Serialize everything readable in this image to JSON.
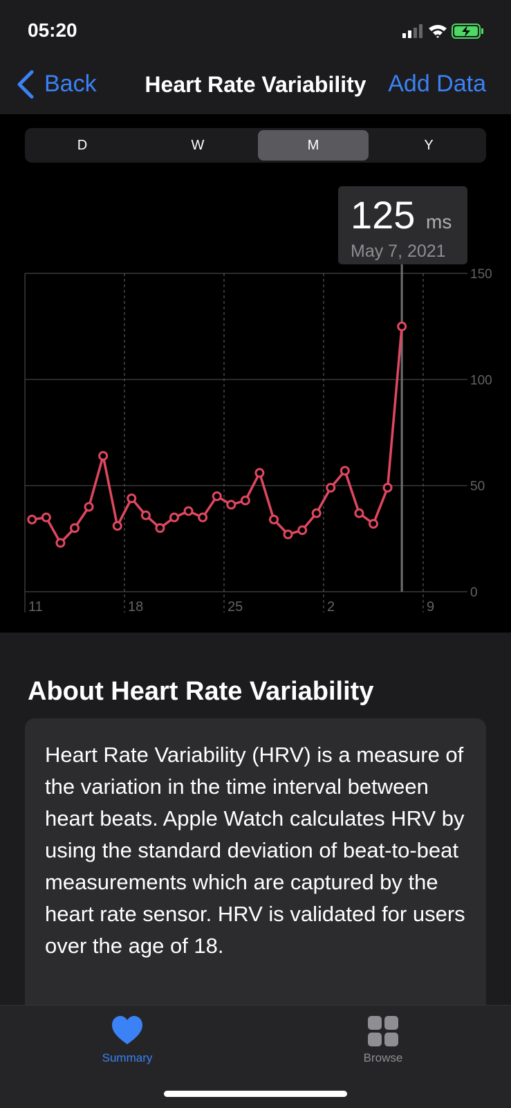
{
  "status": {
    "time": "05:20"
  },
  "nav": {
    "back": "Back",
    "title": "Heart Rate Variability",
    "action": "Add Data"
  },
  "segments": {
    "items": [
      "D",
      "W",
      "M",
      "Y"
    ],
    "selected": 2
  },
  "chart_data": {
    "type": "line",
    "categories": [
      "11",
      null,
      null,
      null,
      null,
      null,
      null,
      "18",
      null,
      null,
      null,
      null,
      null,
      null,
      "25",
      null,
      null,
      null,
      null,
      null,
      null,
      "2",
      null,
      null,
      null,
      null,
      null,
      null,
      "9"
    ],
    "values": [
      34,
      35,
      23,
      30,
      40,
      64,
      31,
      44,
      36,
      30,
      35,
      38,
      35,
      45,
      41,
      43,
      56,
      34,
      27,
      29,
      37,
      49,
      57,
      37,
      32,
      49,
      125,
      null,
      null
    ],
    "color": "#e0475f",
    "ylim": [
      0,
      150
    ],
    "yticks": [
      0,
      50,
      100,
      150
    ],
    "grid": true,
    "highlight": 26,
    "unit": "ms",
    "highlight_date": "May 7, 2021"
  },
  "about": {
    "heading": "About Heart Rate Variability",
    "body": "Heart Rate Variability (HRV) is a measure of the variation in the time interval between heart beats. Apple Watch calculates HRV by using the standard deviation of beat-to-beat measurements which are captured by the heart rate sensor. HRV is validated for users over the age of 18."
  },
  "tabs": [
    "Summary",
    "Browse"
  ]
}
